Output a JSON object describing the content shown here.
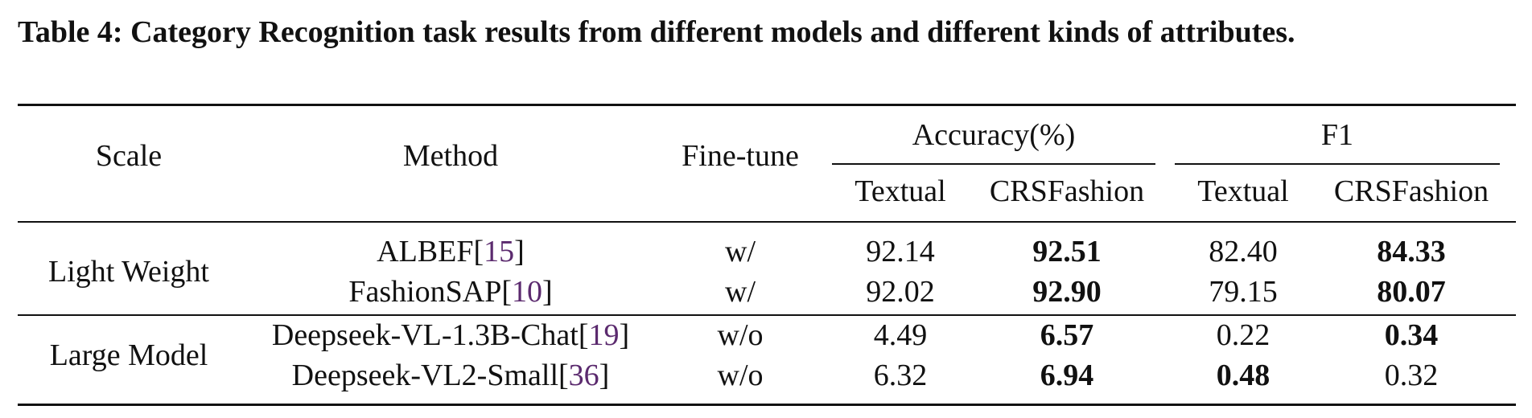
{
  "caption": "Table 4: Category Recognition task results from different models and different kinds of attributes.",
  "headers": {
    "scale": "Scale",
    "method": "Method",
    "finetune": "Fine-tune",
    "accuracy": "Accuracy(%)",
    "f1": "F1",
    "textual_acc": "Textual",
    "crs_acc": "CRSFashion",
    "textual_f1": "Textual",
    "crs_f1": "CRSFashion"
  },
  "groups": [
    {
      "scale": "Light Weight"
    },
    {
      "scale": "Large Model"
    }
  ],
  "rows": [
    {
      "method": "ALBEF",
      "ref": "15",
      "finetune": "w/",
      "acc_textual": "92.14",
      "acc_crs": "92.51",
      "f1_textual": "82.40",
      "f1_crs": "84.33"
    },
    {
      "method": "FashionSAP",
      "ref": "10",
      "finetune": "w/",
      "acc_textual": "92.02",
      "acc_crs": "92.90",
      "f1_textual": "79.15",
      "f1_crs": "80.07"
    },
    {
      "method": "Deepseek-VL-1.3B-Chat",
      "ref": "19",
      "finetune": "w/o",
      "acc_textual": "4.49",
      "acc_crs": "6.57",
      "f1_textual": "0.22",
      "f1_crs": "0.34"
    },
    {
      "method": "Deepseek-VL2-Small",
      "ref": "36",
      "finetune": "w/o",
      "acc_textual": "6.32",
      "acc_crs": "6.94",
      "f1_textual": "0.48",
      "f1_crs": "0.32"
    }
  ]
}
